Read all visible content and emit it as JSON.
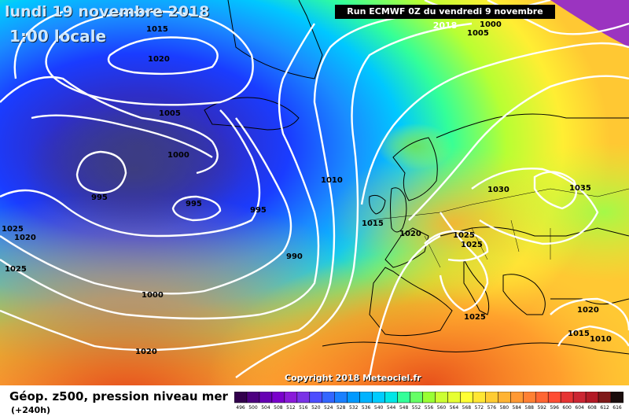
{
  "header": {
    "date": "lundi 19 novembre 2018",
    "time": "1:00 locale",
    "run": "Run ECMWF 0Z du vendredi 9 novembre 2018"
  },
  "copyright": "Copyright 2018 Meteociel.fr",
  "legend": {
    "title": "Géop. z500, pression niveau mer",
    "subtitle": "(+240h)",
    "scale_values": [
      "496",
      "500",
      "504",
      "508",
      "512",
      "516",
      "520",
      "524",
      "528",
      "532",
      "536",
      "540",
      "544",
      "548",
      "552",
      "556",
      "560",
      "564",
      "568",
      "572",
      "576",
      "580",
      "584",
      "588",
      "592",
      "596",
      "600",
      "604",
      "608",
      "612",
      "616"
    ],
    "scale_colors": [
      "#33004d",
      "#4d0080",
      "#6600b3",
      "#7a00cc",
      "#8a1ad9",
      "#7a33e6",
      "#4d4dff",
      "#3366ff",
      "#1a80ff",
      "#0099ff",
      "#00b3ff",
      "#00ccff",
      "#00e6e6",
      "#33ff99",
      "#66ff66",
      "#99ff33",
      "#ccff33",
      "#e6ff33",
      "#ffff33",
      "#ffe633",
      "#ffcc33",
      "#ffb333",
      "#ff9933",
      "#ff8033",
      "#ff6633",
      "#ff4d33",
      "#e63333",
      "#cc2633",
      "#b31a26",
      "#801a1a",
      "#1a0d0d"
    ]
  },
  "isobar_labels": [
    {
      "text": "1015"
    },
    {
      "text": "1020"
    },
    {
      "text": "1005"
    },
    {
      "text": "1000"
    },
    {
      "text": "995"
    },
    {
      "text": "995"
    },
    {
      "text": "995"
    },
    {
      "text": "990"
    },
    {
      "text": "1025"
    },
    {
      "text": "1020"
    },
    {
      "text": "1025"
    },
    {
      "text": "1000"
    },
    {
      "text": "1020"
    },
    {
      "text": "1010"
    },
    {
      "text": "1015"
    },
    {
      "text": "1020"
    },
    {
      "text": "1025"
    },
    {
      "text": "1025"
    },
    {
      "text": "1030"
    },
    {
      "text": "1035"
    },
    {
      "text": "1025"
    },
    {
      "text": "1020"
    },
    {
      "text": "1015"
    },
    {
      "text": "1010"
    },
    {
      "text": "1005"
    },
    {
      "text": "1000"
    }
  ]
}
